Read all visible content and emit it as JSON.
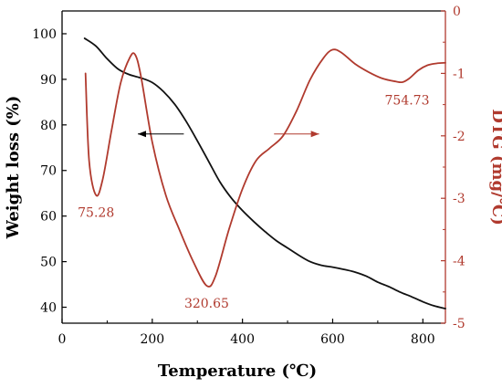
{
  "chart_data": {
    "type": "line",
    "xlabel": "Temperature (℃)",
    "ylabel": "Weight loss (%)",
    "y2label": "DTG (mg/℃)",
    "xlim": [
      0,
      850
    ],
    "ylim": [
      36.5,
      105
    ],
    "y2lim": [
      -5,
      0
    ],
    "x_ticks": [
      0,
      200,
      400,
      600,
      800
    ],
    "y_ticks": [
      40,
      50,
      60,
      70,
      80,
      90,
      100
    ],
    "y2_ticks": [
      0,
      -1,
      -2,
      -3,
      -4,
      -5
    ],
    "grid": false,
    "legend": "none",
    "colors": {
      "weight_loss": "#111111",
      "dtg": "#b03a2e",
      "axis_left": "#000000",
      "axis_right": "#b03a2e"
    },
    "series": [
      {
        "axis": "left",
        "x": [
          50,
          75,
          100,
          125,
          150,
          175,
          200,
          225,
          250,
          275,
          300,
          325,
          350,
          375,
          400,
          425,
          450,
          475,
          500,
          525,
          550,
          575,
          600,
          625,
          650,
          675,
          700,
          725,
          750,
          775,
          800,
          825,
          850
        ],
        "values": [
          99,
          97.3,
          94.5,
          92.2,
          91,
          90.3,
          89.3,
          87.3,
          84.5,
          80.8,
          76.5,
          72,
          67.5,
          64,
          61.2,
          58.8,
          56.6,
          54.6,
          53,
          51.4,
          50,
          49.2,
          48.8,
          48.3,
          47.7,
          46.8,
          45.5,
          44.5,
          43.3,
          42.3,
          41.2,
          40.3,
          39.7
        ]
      },
      {
        "axis": "right",
        "x": [
          52,
          60,
          75.28,
          90,
          110,
          130,
          150,
          162,
          175,
          200,
          230,
          260,
          290,
          320.65,
          340,
          370,
          400,
          430,
          460,
          490,
          520,
          550,
          580,
          600,
          620,
          650,
          680,
          710,
          740,
          754.73,
          770,
          790,
          810,
          830,
          850
        ],
        "values": [
          -1.0,
          -2.4,
          -2.95,
          -2.7,
          -1.9,
          -1.15,
          -0.75,
          -0.7,
          -1.05,
          -2.1,
          -2.95,
          -3.5,
          -4.0,
          -4.4,
          -4.25,
          -3.5,
          -2.85,
          -2.4,
          -2.2,
          -2.0,
          -1.6,
          -1.1,
          -0.75,
          -0.62,
          -0.67,
          -0.85,
          -0.98,
          -1.08,
          -1.13,
          -1.14,
          -1.08,
          -0.95,
          -0.87,
          -0.84,
          -0.83
        ]
      }
    ],
    "annotations": [
      {
        "text": "75.28",
        "x": 75.28,
        "y2": -3.3
      },
      {
        "text": "320.65",
        "x": 320.65,
        "y2": -4.75
      },
      {
        "text": "754.73",
        "x": 765,
        "y2": -1.5
      }
    ],
    "arrows": [
      {
        "direction": "left",
        "x_from": 270,
        "x_to": 168,
        "y": 78
      },
      {
        "direction": "right",
        "x_from": 470,
        "x_to": 570,
        "y": 78
      }
    ]
  }
}
